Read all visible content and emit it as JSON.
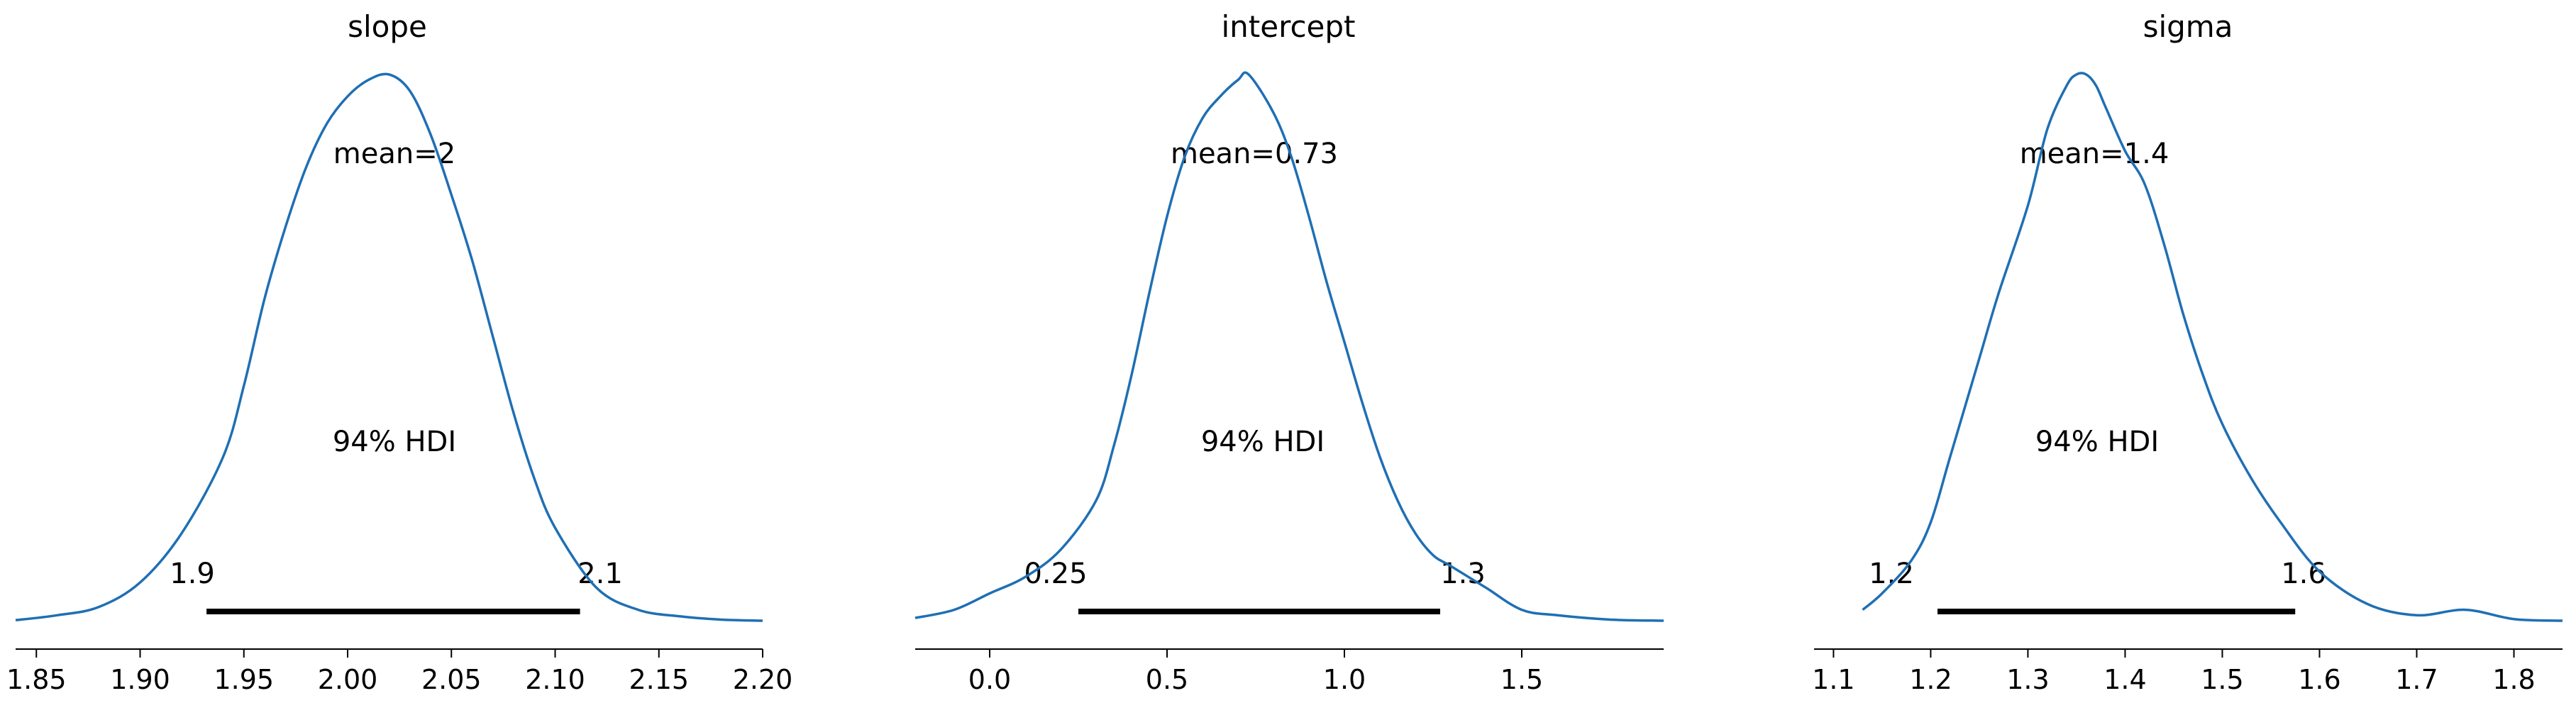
{
  "chart_data": [
    {
      "type": "area",
      "title": "slope",
      "mean_label": "mean=2",
      "hdi_label": "94% HDI",
      "hdi": [
        1.932,
        2.112
      ],
      "hdi_low_label": "1.9",
      "hdi_high_label": "2.1",
      "xlim": [
        1.84,
        2.2
      ],
      "xticks": [
        1.85,
        1.9,
        1.95,
        2.0,
        2.05,
        2.1,
        2.15,
        2.2
      ],
      "xtick_labels": [
        "1.85",
        "1.90",
        "1.95",
        "2.00",
        "2.05",
        "2.10",
        "2.15",
        "2.20"
      ],
      "x": [
        1.84,
        1.86,
        1.88,
        1.9,
        1.92,
        1.94,
        1.95,
        1.96,
        1.97,
        1.98,
        1.99,
        2.0,
        2.01,
        2.02,
        2.03,
        2.04,
        2.05,
        2.06,
        2.07,
        2.08,
        2.09,
        2.1,
        2.12,
        2.14,
        2.16,
        2.18,
        2.2
      ],
      "density": [
        0.001,
        0.01,
        0.025,
        0.07,
        0.16,
        0.3,
        0.43,
        0.59,
        0.72,
        0.83,
        0.91,
        0.96,
        0.99,
        1.0,
        0.97,
        0.89,
        0.78,
        0.66,
        0.52,
        0.38,
        0.26,
        0.17,
        0.06,
        0.02,
        0.008,
        0.002,
        0.0
      ]
    },
    {
      "type": "area",
      "title": "intercept",
      "mean_label": "mean=0.73",
      "hdi_label": "94% HDI",
      "hdi": [
        0.25,
        1.27
      ],
      "hdi_low_label": "0.25",
      "hdi_high_label": "1.3",
      "xlim": [
        -0.21,
        1.9
      ],
      "xticks": [
        0.0,
        0.5,
        1.0,
        1.5
      ],
      "xtick_labels": [
        "0.0",
        "0.5",
        "1.0",
        "1.5"
      ],
      "x": [
        -0.21,
        -0.1,
        0.0,
        0.1,
        0.2,
        0.3,
        0.35,
        0.4,
        0.45,
        0.5,
        0.55,
        0.6,
        0.65,
        0.7,
        0.73,
        0.8,
        0.85,
        0.9,
        0.95,
        1.0,
        1.05,
        1.1,
        1.15,
        1.2,
        1.25,
        1.3,
        1.4,
        1.5,
        1.6,
        1.75,
        1.9
      ],
      "density": [
        0.005,
        0.02,
        0.05,
        0.08,
        0.13,
        0.22,
        0.32,
        0.45,
        0.6,
        0.74,
        0.85,
        0.92,
        0.96,
        0.99,
        1.0,
        0.93,
        0.85,
        0.74,
        0.62,
        0.51,
        0.4,
        0.3,
        0.22,
        0.16,
        0.12,
        0.1,
        0.06,
        0.02,
        0.01,
        0.002,
        0.0
      ]
    },
    {
      "type": "area",
      "title": "sigma",
      "mean_label": "mean=1.4",
      "hdi_label": "94% HDI",
      "hdi": [
        1.207,
        1.575
      ],
      "hdi_low_label": "1.2",
      "hdi_high_label": "1.6",
      "xlim": [
        1.08,
        1.85
      ],
      "xticks": [
        1.1,
        1.2,
        1.3,
        1.4,
        1.5,
        1.6,
        1.7,
        1.8
      ],
      "xtick_labels": [
        "1.1",
        "1.2",
        "1.3",
        "1.4",
        "1.5",
        "1.6",
        "1.7",
        "1.8"
      ],
      "x": [
        1.13,
        1.15,
        1.18,
        1.2,
        1.22,
        1.25,
        1.27,
        1.3,
        1.32,
        1.34,
        1.35,
        1.36,
        1.37,
        1.38,
        1.4,
        1.42,
        1.44,
        1.46,
        1.48,
        1.5,
        1.53,
        1.56,
        1.6,
        1.65,
        1.7,
        1.75,
        1.8,
        1.85
      ],
      "density": [
        0.02,
        0.05,
        0.11,
        0.18,
        0.3,
        0.48,
        0.6,
        0.76,
        0.9,
        0.98,
        1.0,
        1.0,
        0.98,
        0.94,
        0.86,
        0.8,
        0.69,
        0.56,
        0.45,
        0.36,
        0.26,
        0.18,
        0.09,
        0.03,
        0.01,
        0.02,
        0.003,
        0.0
      ]
    }
  ]
}
